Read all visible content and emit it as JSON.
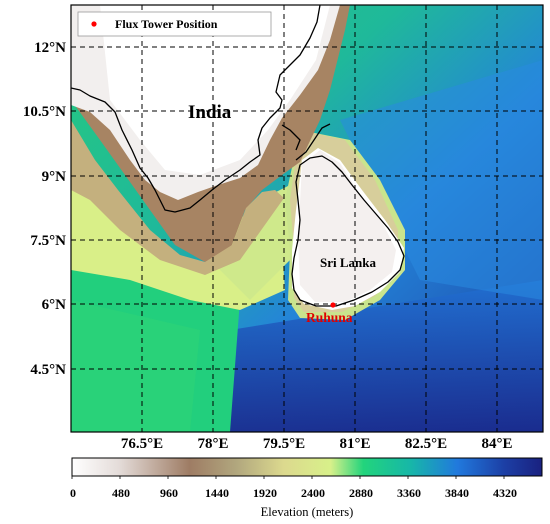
{
  "map": {
    "latitude_labels": [
      "12°N",
      "10.5°N",
      "9°N",
      "7.5°N",
      "6°N",
      "4.5°N"
    ],
    "longitude_labels": [
      "76.5°E",
      "78°E",
      "79.5°E",
      "81°E",
      "82.5°E",
      "84°E"
    ],
    "place_labels": {
      "india": "India",
      "sri_lanka": "Sri Lanka"
    },
    "station": {
      "name": "Ruhuna",
      "color": "#ff0000"
    },
    "legend": {
      "label": "Flux Tower Position"
    },
    "gridlines": "dashed"
  },
  "colorbar": {
    "title": "Elevation (meters)",
    "ticks": [
      "0",
      "480",
      "960",
      "1440",
      "1920",
      "2400",
      "2880",
      "3360",
      "3840",
      "4320"
    ],
    "colors": [
      "#ffffff",
      "#e4dcd9",
      "#9e7c64",
      "#b1a77e",
      "#dcd98e",
      "#d8f08a",
      "#22d47c",
      "#17b7a8",
      "#2179dd",
      "#1c3fa5",
      "#1a2180"
    ]
  }
}
